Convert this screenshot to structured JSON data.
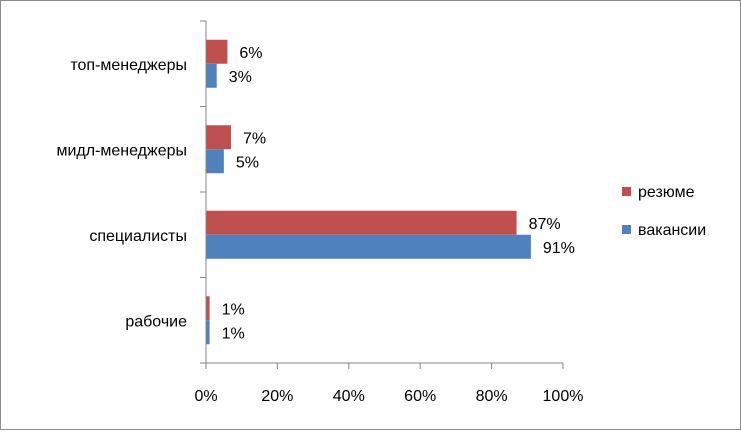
{
  "chart_data": {
    "type": "bar",
    "orientation": "horizontal",
    "categories": [
      "топ-менеджеры",
      "мидл-менеджеры",
      "специалисты",
      "рабочие"
    ],
    "series": [
      {
        "name": "резюме",
        "values": [
          6,
          7,
          87,
          1
        ],
        "labels": [
          "6%",
          "7%",
          "87%",
          "1%"
        ],
        "color": "#C0504D"
      },
      {
        "name": "вакансии",
        "values": [
          3,
          5,
          91,
          1
        ],
        "labels": [
          "3%",
          "5%",
          "91%",
          "1%"
        ],
        "color": "#4F81BD"
      }
    ],
    "xlim": [
      0,
      100
    ],
    "xticks": [
      "0%",
      "20%",
      "40%",
      "60%",
      "80%",
      "100%"
    ],
    "grid": false,
    "legend": "right",
    "axis_color": "#868686"
  }
}
